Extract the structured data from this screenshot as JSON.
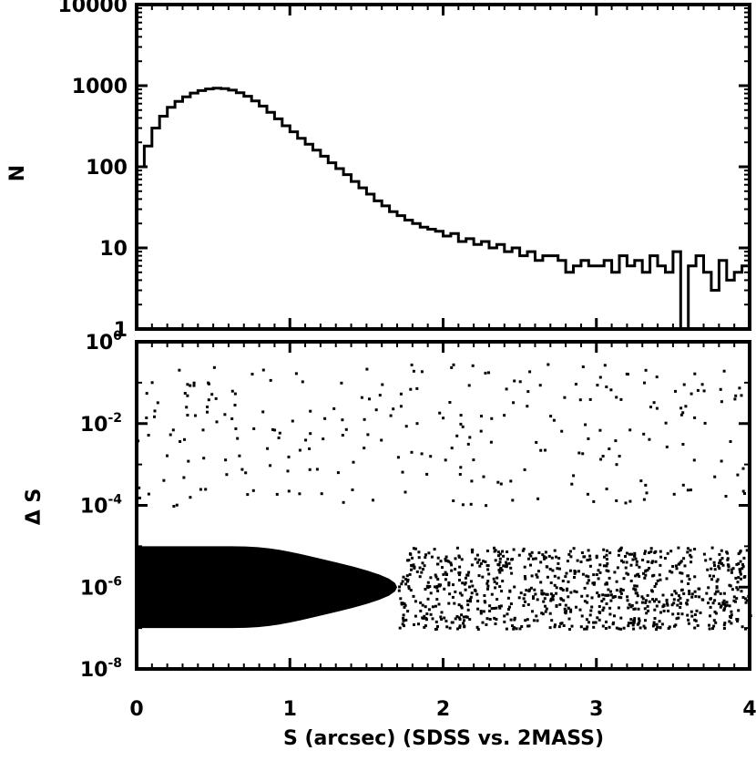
{
  "chart_data": [
    {
      "type": "line",
      "panel": "top",
      "ylabel": "N",
      "yscale": "log",
      "xlim": [
        0,
        4
      ],
      "ylim": [
        1,
        10000
      ],
      "yticks": [
        {
          "value": 1,
          "label": "1"
        },
        {
          "value": 10,
          "label": "10"
        },
        {
          "value": 100,
          "label": "100"
        },
        {
          "value": 1000,
          "label": "1000"
        },
        {
          "value": 10000,
          "label": "10000"
        }
      ],
      "series": [
        {
          "x": [
            0.0,
            0.05,
            0.1,
            0.15,
            0.2,
            0.25,
            0.3,
            0.35,
            0.4,
            0.45,
            0.5,
            0.55,
            0.6,
            0.65,
            0.7,
            0.75,
            0.8,
            0.85,
            0.9,
            0.95,
            1.0,
            1.05,
            1.1,
            1.15,
            1.2,
            1.25,
            1.3,
            1.35,
            1.4,
            1.45,
            1.5,
            1.55,
            1.6,
            1.65,
            1.7,
            1.75,
            1.8,
            1.85,
            1.9,
            1.95,
            2.0,
            2.05,
            2.1,
            2.15,
            2.2,
            2.25,
            2.3,
            2.35,
            2.4,
            2.45,
            2.5,
            2.55,
            2.6,
            2.65,
            2.7,
            2.75,
            2.8,
            2.85,
            2.9,
            2.95,
            3.0,
            3.05,
            3.1,
            3.15,
            3.2,
            3.25,
            3.3,
            3.35,
            3.4,
            3.45,
            3.5,
            3.55,
            3.6,
            3.65,
            3.7,
            3.75,
            3.8,
            3.85,
            3.9,
            3.95
          ],
          "values": [
            100,
            180,
            300,
            420,
            540,
            640,
            730,
            810,
            870,
            910,
            930,
            920,
            880,
            820,
            740,
            650,
            560,
            470,
            390,
            320,
            270,
            225,
            190,
            160,
            135,
            112,
            95,
            80,
            66,
            55,
            46,
            38,
            33,
            28,
            25,
            22,
            20,
            18,
            17,
            16,
            14,
            15,
            12,
            13,
            11,
            12,
            10,
            11,
            9,
            10,
            8,
            9,
            7,
            8,
            8,
            7,
            5,
            6,
            7,
            6,
            6,
            7,
            5,
            8,
            6,
            7,
            5,
            8,
            6,
            5,
            9,
            1,
            6,
            8,
            5,
            3,
            7,
            4,
            5,
            6
          ]
        }
      ]
    },
    {
      "type": "scatter",
      "panel": "bottom",
      "xlabel": "S (arcsec) (SDSS vs. 2MASS)",
      "ylabel": "Δ S",
      "yscale": "log",
      "xlim": [
        0,
        4
      ],
      "ylim": [
        1e-08,
        1
      ],
      "yticks": [
        {
          "value": 1,
          "base": "10",
          "exp": "0"
        },
        {
          "value": 0.01,
          "base": "10",
          "exp": "-2"
        },
        {
          "value": 0.0001,
          "base": "10",
          "exp": "-4"
        },
        {
          "value": 1e-06,
          "base": "10",
          "exp": "-6"
        },
        {
          "value": 1e-08,
          "base": "10",
          "exp": "-8"
        }
      ],
      "dense_region": {
        "x": [
          0.0,
          1.7
        ],
        "y": [
          1e-07,
          1e-05
        ]
      },
      "scatter_bands": [
        {
          "x": [
            1.7,
            4.0
          ],
          "y": [
            1e-07,
            1e-05
          ]
        },
        {
          "x": [
            0.0,
            4.0
          ],
          "y": [
            0.0001,
            0.3
          ]
        }
      ]
    }
  ],
  "xticks": [
    {
      "value": 0,
      "label": "0"
    },
    {
      "value": 1,
      "label": "1"
    },
    {
      "value": 2,
      "label": "2"
    },
    {
      "value": 3,
      "label": "3"
    },
    {
      "value": 4,
      "label": "4"
    }
  ]
}
